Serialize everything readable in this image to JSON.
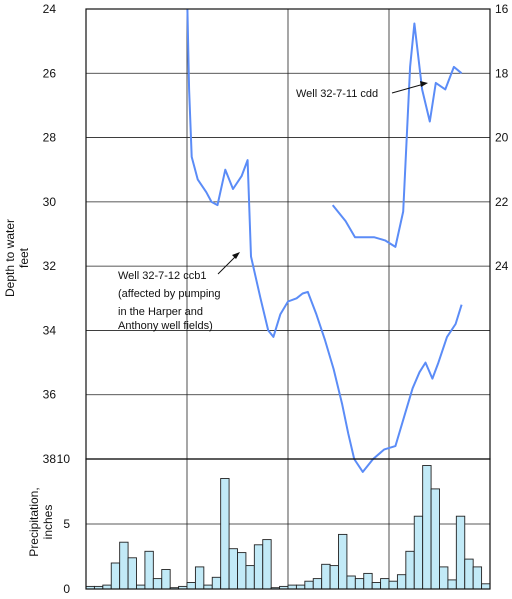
{
  "chart_data": [
    {
      "type": "line",
      "left_axis": {
        "label_lines": [
          "Depth to water",
          "feet"
        ],
        "range": [
          24,
          38
        ],
        "inverted": true,
        "ticks": [
          24,
          26,
          28,
          30,
          32,
          34,
          36,
          38
        ]
      },
      "right_axis": {
        "range": [
          16,
          30
        ],
        "inverted": true,
        "ticks": [
          16,
          18,
          20,
          22,
          24
        ]
      },
      "grid": true,
      "series": [
        {
          "name": "Well 32-7-12 ccb1",
          "axis": "left",
          "color": "#5b8cf7",
          "points": [
            [
              11.8,
              24.0
            ],
            [
              12.0,
              26.5
            ],
            [
              12.3,
              28.6
            ],
            [
              13.0,
              29.3
            ],
            [
              14.0,
              29.7
            ],
            [
              14.6,
              30.0
            ],
            [
              15.3,
              30.1
            ],
            [
              16.2,
              29.0
            ],
            [
              17.1,
              29.6
            ],
            [
              18.1,
              29.2
            ],
            [
              18.8,
              28.7
            ],
            [
              19.2,
              31.7
            ],
            [
              20.3,
              33.0
            ],
            [
              21.2,
              34.0
            ],
            [
              21.8,
              34.2
            ],
            [
              22.6,
              33.5
            ],
            [
              23.5,
              33.1
            ],
            [
              24.5,
              33.0
            ],
            [
              25.2,
              32.85
            ],
            [
              25.8,
              32.8
            ],
            [
              26.8,
              33.5
            ],
            [
              27.8,
              34.3
            ],
            [
              28.8,
              35.2
            ],
            [
              29.8,
              36.3
            ],
            [
              30.5,
              37.2
            ],
            [
              31.2,
              38.0
            ],
            [
              32.2,
              38.4
            ],
            [
              33.4,
              38.0
            ],
            [
              34.7,
              37.7
            ],
            [
              36.0,
              37.6
            ],
            [
              37.0,
              36.7
            ],
            [
              38.0,
              35.8
            ],
            [
              38.8,
              35.3
            ],
            [
              39.5,
              35.0
            ],
            [
              40.3,
              35.5
            ],
            [
              41.0,
              35.0
            ],
            [
              42.0,
              34.2
            ],
            [
              43.0,
              33.8
            ],
            [
              43.7,
              33.2
            ]
          ]
        },
        {
          "name": "Well 32-7-11 cdd",
          "axis": "right",
          "color": "#5b8cf7",
          "points": [
            [
              28.7,
              22.1
            ],
            [
              30.2,
              22.6
            ],
            [
              31.3,
              23.1
            ],
            [
              33.5,
              23.1
            ],
            [
              34.8,
              23.2
            ],
            [
              36.0,
              23.4
            ],
            [
              36.9,
              22.3
            ],
            [
              37.7,
              17.8
            ],
            [
              38.2,
              16.45
            ],
            [
              39.1,
              18.5
            ],
            [
              40.0,
              19.5
            ],
            [
              40.7,
              18.3
            ],
            [
              41.8,
              18.5
            ],
            [
              42.8,
              17.8
            ],
            [
              43.7,
              18.0
            ]
          ]
        }
      ],
      "annotations": [
        {
          "lines": [
            "Well 32-7-12 ccb1",
            "(affected by pumping",
            "in the Harper and",
            "Anthony well fields)"
          ]
        },
        {
          "lines": [
            "Well 32-7-11 cdd"
          ]
        }
      ]
    },
    {
      "type": "bar",
      "ylabel_lines": [
        "Precipitation,",
        "inches"
      ],
      "ylim": [
        0,
        10
      ],
      "yticks": [
        0,
        5,
        10
      ],
      "color": "#c2eaf7",
      "edge_color": "#222222",
      "values": [
        0.2,
        0.2,
        0.3,
        2.0,
        3.6,
        2.4,
        0.3,
        2.9,
        0.8,
        1.5,
        0.1,
        0.2,
        0.5,
        1.7,
        0.3,
        0.9,
        8.5,
        3.1,
        2.8,
        1.8,
        3.4,
        3.8,
        0.1,
        0.2,
        0.3,
        0.3,
        0.6,
        0.8,
        1.9,
        1.8,
        4.2,
        1.0,
        0.8,
        1.2,
        0.5,
        0.8,
        0.6,
        1.1,
        2.9,
        5.6,
        9.5,
        7.7,
        1.7,
        0.7,
        5.6,
        2.3,
        1.7,
        0.4
      ]
    }
  ]
}
